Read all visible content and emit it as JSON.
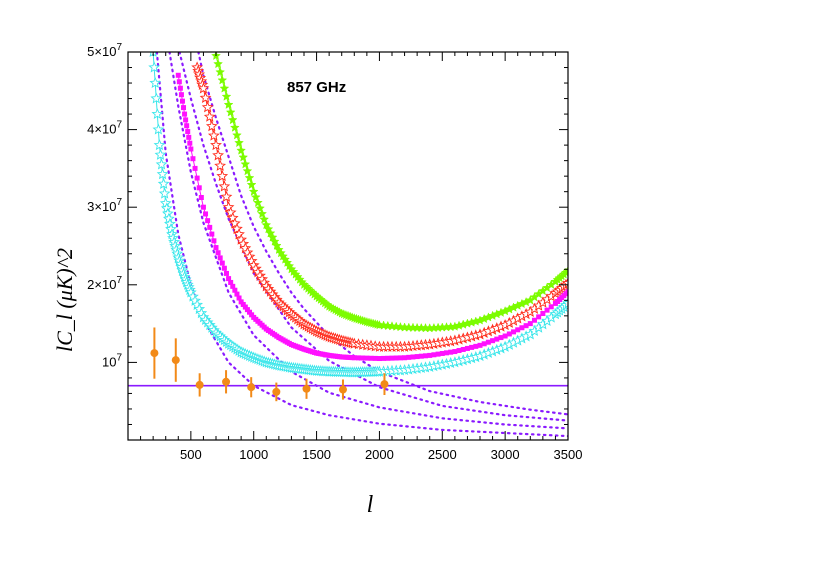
{
  "chart_data": {
    "type": "line",
    "title": "857 GHz",
    "xlabel": "l",
    "ylabel": "lC_l (μK)^2",
    "xlim": [
      0,
      3500
    ],
    "ylim": [
      0,
      50000000
    ],
    "x_ticks": [
      {
        "value": 500,
        "label": "500"
      },
      {
        "value": 1000,
        "label": "1000"
      },
      {
        "value": 1500,
        "label": "1500"
      },
      {
        "value": 2000,
        "label": "2000"
      },
      {
        "value": 2500,
        "label": "2500"
      },
      {
        "value": 3000,
        "label": "3000"
      },
      {
        "value": 3500,
        "label": "3500"
      }
    ],
    "y_ticks": [
      {
        "value": 10000000,
        "mantissa": "10",
        "exp": "7"
      },
      {
        "value": 20000000,
        "mantissa": "2×10",
        "exp": "7"
      },
      {
        "value": 30000000,
        "mantissa": "3×10",
        "exp": "7"
      },
      {
        "value": 40000000,
        "mantissa": "4×10",
        "exp": "7"
      },
      {
        "value": 50000000,
        "mantissa": "5×10",
        "exp": "7"
      }
    ],
    "grid": false,
    "series": [
      {
        "marker": "star-filled",
        "color": "#7cfc00",
        "x": [
          700,
          800,
          900,
          1000,
          1100,
          1200,
          1300,
          1400,
          1500,
          1600,
          1700,
          1800,
          1900,
          2000,
          2200,
          2400,
          2600,
          2800,
          3000,
          3200,
          3400,
          3500
        ],
        "y": [
          49500000,
          43200000,
          37300000,
          32000000,
          27700000,
          24500000,
          22000000,
          20000000,
          18500000,
          17200000,
          16300000,
          15700000,
          15200000,
          14800000,
          14500000,
          14400000,
          14600000,
          15400000,
          16600000,
          18000000,
          20400000,
          21800000
        ]
      },
      {
        "marker": "star-open",
        "color": "#ff2a1a",
        "x": [
          550,
          600,
          700,
          800,
          900,
          1000,
          1100,
          1200,
          1300,
          1400,
          1500,
          1600,
          1700,
          1800,
          2000,
          2200,
          2400,
          2600,
          2800,
          3000,
          3200,
          3400,
          3500
        ],
        "y": [
          48000000,
          45300000,
          38000000,
          30000000,
          25800000,
          22500000,
          19800000,
          17700000,
          16200000,
          14900000,
          14000000,
          13300000,
          12800000,
          12400000,
          12000000,
          12000000,
          12300000,
          12800000,
          13600000,
          14800000,
          16500000,
          18900000,
          20200000
        ]
      },
      {
        "marker": "square",
        "color": "#ff10ff",
        "x": [
          400,
          450,
          500,
          600,
          700,
          800,
          900,
          1000,
          1100,
          1200,
          1300,
          1400,
          1500,
          1600,
          1700,
          1800,
          2000,
          2200,
          2400,
          2600,
          2800,
          3000,
          3200,
          3400,
          3500
        ],
        "y": [
          47000000,
          42000000,
          37500000,
          30000000,
          24800000,
          20800000,
          17800000,
          15800000,
          14300000,
          13200000,
          12300000,
          11700000,
          11200000,
          10900000,
          10700000,
          10600000,
          10500000,
          10600000,
          10900000,
          11400000,
          12200000,
          13400000,
          15000000,
          17600000,
          19100000
        ]
      },
      {
        "marker": "star-open",
        "color": "#39e6ea",
        "x": [
          200,
          250,
          300,
          350,
          400,
          450,
          500,
          600,
          700,
          800,
          900,
          1000,
          1100,
          1200,
          1300,
          1400,
          1500,
          1600,
          1700,
          1800,
          1900,
          2000,
          2200,
          2400,
          2600,
          2800,
          3000,
          3200,
          3400,
          3500
        ],
        "y": [
          50000000,
          38000000,
          30500000,
          26500000,
          23500000,
          21000000,
          19000000,
          15800000,
          13800000,
          12400000,
          11300000,
          10600000,
          10000000,
          9600000,
          9300000,
          9100000,
          8900000,
          8800000,
          8750000,
          8700000,
          8750000,
          8800000,
          9000000,
          9400000,
          10000000,
          10800000,
          12000000,
          13600000,
          16200000,
          17600000
        ]
      }
    ],
    "poisson_curves": [
      {
        "x": [
          230,
          300,
          400,
          500,
          600,
          800,
          1000,
          1300,
          1600,
          2000,
          2500,
          3000,
          3500
        ],
        "y": [
          50000000,
          37000000,
          26500000,
          20000000,
          15500000,
          10000000,
          7000000,
          4500000,
          3200000,
          2100000,
          1300000,
          900000,
          500000
        ]
      },
      {
        "x": [
          330,
          400,
          500,
          600,
          800,
          1000,
          1300,
          1600,
          2000,
          2500,
          3000,
          3500
        ],
        "y": [
          50000000,
          43000000,
          34500000,
          28000000,
          19000000,
          13500000,
          8800000,
          6100000,
          4200000,
          2800000,
          2000000,
          1500000
        ]
      },
      {
        "x": [
          410,
          500,
          600,
          700,
          800,
          1000,
          1300,
          1600,
          2000,
          2500,
          3000,
          3500
        ],
        "y": [
          50000000,
          44000000,
          38000000,
          33000000,
          28500000,
          21500000,
          14500000,
          10200000,
          6800000,
          4400000,
          3200000,
          2500000
        ]
      },
      {
        "x": [
          560,
          600,
          700,
          800,
          900,
          1000,
          1100,
          1200,
          1300,
          1400,
          1600,
          1800,
          2000,
          2400,
          2800,
          3200,
          3500
        ],
        "y": [
          50000000,
          47000000,
          41500000,
          36500000,
          31500000,
          27500000,
          24300000,
          21500000,
          19000000,
          16900000,
          13400000,
          10800000,
          8800000,
          6300000,
          4900000,
          3900000,
          3300000
        ]
      }
    ],
    "hline": {
      "y": 7000000,
      "color": "#8a1aff"
    },
    "data_points": {
      "color": "#f28a18",
      "x": [
        210,
        380,
        570,
        780,
        980,
        1180,
        1420,
        1710,
        2040
      ],
      "y": [
        11200000,
        10300000,
        7100000,
        7500000,
        6800000,
        6200000,
        6600000,
        6500000,
        7200000
      ],
      "err": [
        3300000,
        2800000,
        1500000,
        1500000,
        1300000,
        1200000,
        1300000,
        1300000,
        1400000
      ]
    },
    "colors": {
      "curves": "#8a1aff",
      "axis": "#000000"
    }
  }
}
